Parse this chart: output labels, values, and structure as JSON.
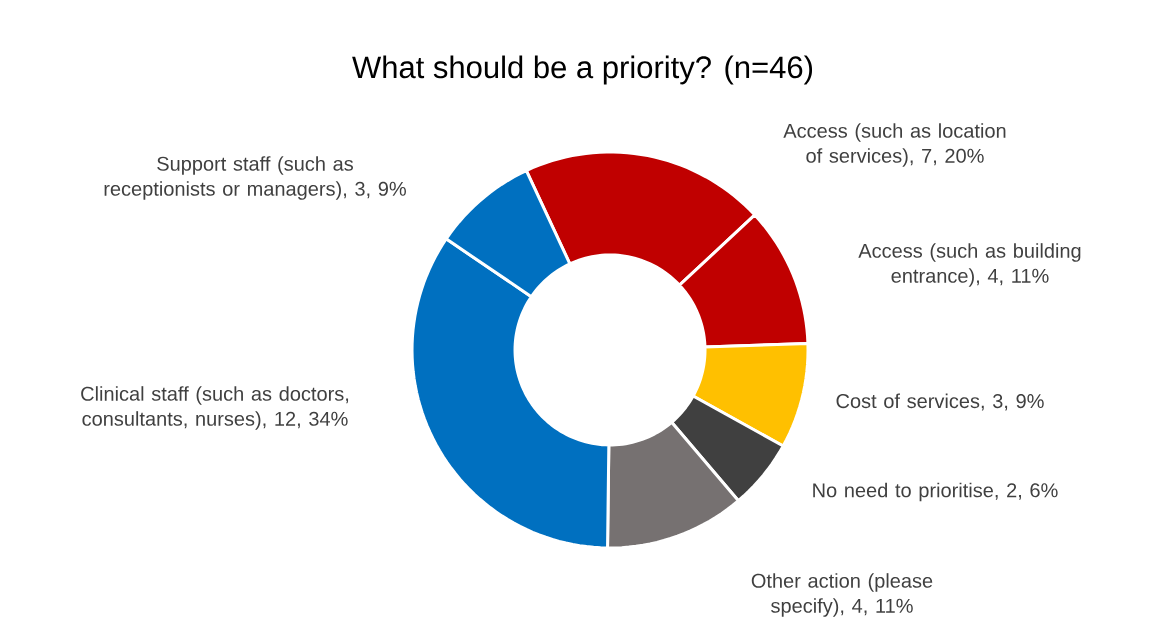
{
  "chart_data": {
    "type": "donut",
    "title": "What should be a priority? (n=46)",
    "categories": [
      "Access (such as location of services), 7, 20%",
      "Access (such as building entrance), 4, 11%",
      "Cost of services, 3, 9%",
      "No need to prioritise, 2, 6%",
      "Other action (please specify), 4, 11%",
      "Clinical staff (such as doctors, consultants, nurses), 12, 34%",
      "Support staff (such as receptionists or managers), 3, 9%"
    ],
    "values": [
      7,
      4,
      3,
      2,
      4,
      12,
      3
    ],
    "colors": [
      "#c00000",
      "#c00000",
      "#ffc000",
      "#404040",
      "#767171",
      "#0070c0",
      "#0070c0"
    ]
  }
}
